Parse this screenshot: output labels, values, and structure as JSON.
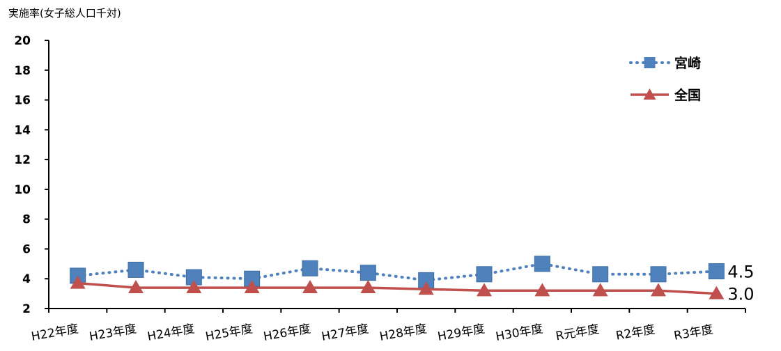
{
  "chart_data": {
    "type": "line",
    "ylabel": "実施率(女子総人口千対)",
    "ylim": [
      2,
      20
    ],
    "yticks": [
      "2",
      "4",
      "6",
      "8",
      "10",
      "12",
      "14",
      "16",
      "18",
      "20"
    ],
    "categories": [
      "H22年度",
      "H23年度",
      "H24年度",
      "H25年度",
      "H26年度",
      "H27年度",
      "H28年度",
      "H29年度",
      "H30年度",
      "R元年度",
      "R2年度",
      "R3年度"
    ],
    "series": [
      {
        "name": "宮崎",
        "values": [
          4.2,
          4.6,
          4.1,
          4.0,
          4.7,
          4.4,
          3.9,
          4.3,
          5.0,
          4.3,
          4.3,
          4.5
        ],
        "color": "#4f81bd",
        "marker": "square",
        "line": "dotted",
        "end_label": "4.5"
      },
      {
        "name": "全国",
        "values": [
          3.7,
          3.4,
          3.4,
          3.4,
          3.4,
          3.4,
          3.3,
          3.2,
          3.2,
          3.2,
          3.2,
          3.0
        ],
        "color": "#c0504d",
        "marker": "triangle",
        "line": "solid",
        "end_label": "3.0"
      }
    ],
    "legend_position": "top-right",
    "grid": false
  }
}
